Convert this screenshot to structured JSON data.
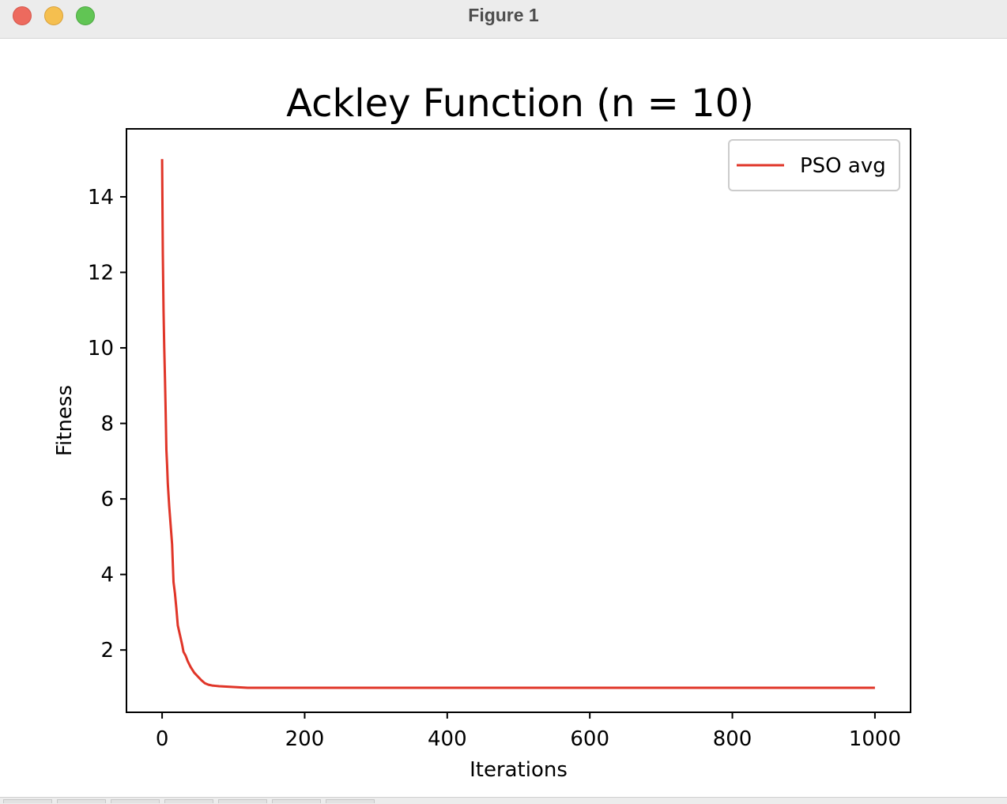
{
  "window": {
    "title": "Figure 1"
  },
  "colors": {
    "series": "#e03528",
    "axes": "#000000",
    "background": "#ffffff"
  },
  "toolbar": {
    "buttons": [
      "home-icon",
      "back-icon",
      "forward-icon",
      "pan-icon",
      "zoom-icon",
      "configure-icon",
      "save-icon"
    ]
  },
  "chart_data": {
    "type": "line",
    "title": "Ackley Function (n = 10)",
    "xlabel": "Iterations",
    "ylabel": "Fitness",
    "xlim": [
      -50,
      1050
    ],
    "ylim": [
      0.35,
      15.8
    ],
    "xticks": [
      0,
      200,
      400,
      600,
      800,
      1000
    ],
    "yticks": [
      2,
      4,
      6,
      8,
      10,
      12,
      14
    ],
    "xtick_labels": [
      "0",
      "200",
      "400",
      "600",
      "800",
      "1000"
    ],
    "ytick_labels": [
      "2",
      "4",
      "6",
      "8",
      "10",
      "12",
      "14"
    ],
    "grid": false,
    "legend_position": "upper right",
    "series": [
      {
        "name": "PSO avg",
        "color": "#e03528",
        "x": [
          0,
          1,
          2,
          3,
          4,
          5,
          6,
          7,
          8,
          10,
          12,
          14,
          16,
          18,
          20,
          22,
          25,
          28,
          30,
          33,
          36,
          40,
          45,
          50,
          55,
          60,
          65,
          70,
          75,
          80,
          90,
          100,
          110,
          120,
          140,
          160,
          200,
          300,
          400,
          500,
          600,
          700,
          800,
          900,
          1000
        ],
        "y": [
          15.0,
          12.5,
          11.0,
          10.0,
          9.2,
          8.3,
          7.3,
          6.9,
          6.4,
          5.8,
          5.3,
          4.8,
          3.8,
          3.5,
          3.1,
          2.65,
          2.4,
          2.15,
          1.95,
          1.85,
          1.7,
          1.55,
          1.4,
          1.3,
          1.2,
          1.12,
          1.08,
          1.06,
          1.05,
          1.04,
          1.03,
          1.02,
          1.01,
          1.0,
          1.0,
          1.0,
          1.0,
          1.0,
          1.0,
          1.0,
          1.0,
          1.0,
          1.0,
          1.0,
          1.0
        ]
      }
    ]
  }
}
